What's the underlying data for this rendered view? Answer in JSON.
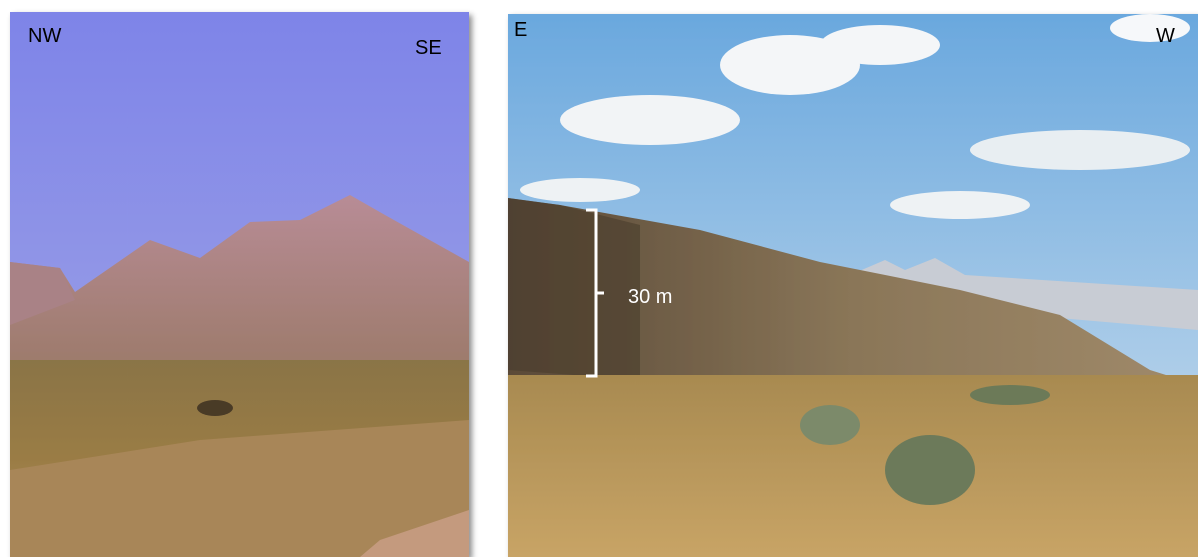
{
  "panels": [
    {
      "labels": {
        "left": "NW",
        "right": "SE"
      }
    },
    {
      "labels": {
        "left": "E",
        "right": "W"
      },
      "scale_label": "30 m"
    }
  ]
}
